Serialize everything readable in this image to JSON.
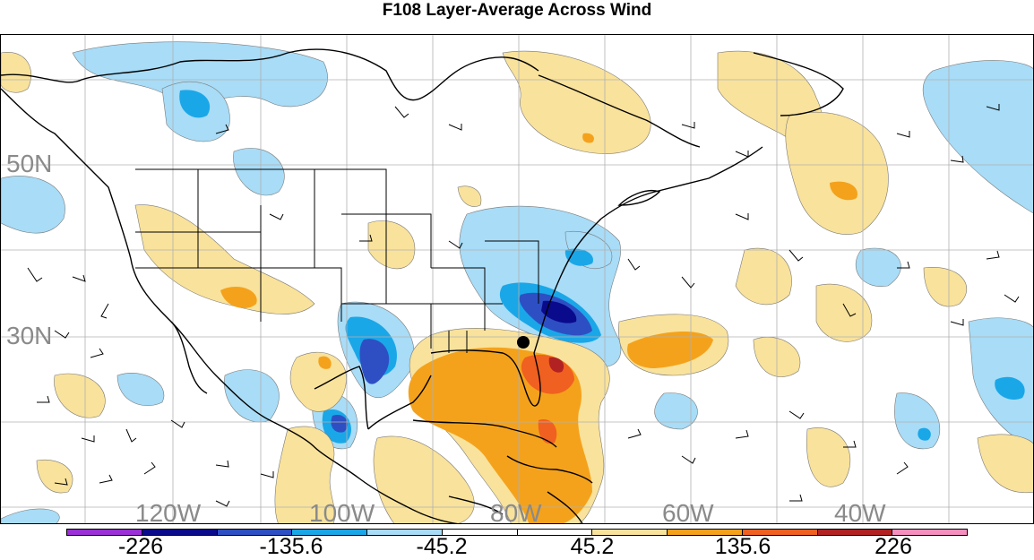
{
  "title": "F108 Layer-Average Across Wind",
  "lat_labels": [
    "50N",
    "30N"
  ],
  "lon_labels": [
    "120W",
    "100W",
    "80W",
    "60W",
    "40W"
  ],
  "colorbar": {
    "colors": [
      "#9b30d8",
      "#0a0a8c",
      "#2e4fc4",
      "#1aa7e8",
      "#a8dcf7",
      "#ffffff",
      "#ffffff",
      "#f9e29b",
      "#f4a21c",
      "#f06020",
      "#b22222",
      "#f68fbd"
    ],
    "labels": [
      "-226",
      "-135.6",
      "-45.2",
      "45.2",
      "135.6",
      "226"
    ]
  },
  "marker": "storm-center-dot"
}
